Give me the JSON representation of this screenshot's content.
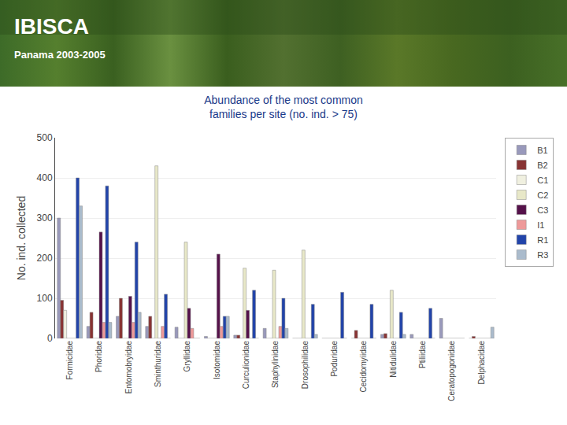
{
  "chart_data": {
    "type": "bar",
    "title": "Abundance of the most common\nfamilies per site (no. ind. > 75)",
    "annotations": [
      "IBISCA",
      "Panama 2003-2005"
    ],
    "y_label": "No. ind. collected",
    "categories": [
      "Formicidae",
      "Phoridae",
      "Entomobryidae",
      "Sminthuridae",
      "Gryllidae",
      "Isotomidae",
      "Curculionidae",
      "Staphylinidae",
      "Drosophilidae",
      "Poduridae",
      "Cecidomyiidae",
      "Nitidulidae",
      "Ptiliidae",
      "Ceratopogonidae",
      "Delphacidae"
    ],
    "series": [
      {
        "name": "B1",
        "color": "#9999bb",
        "values": [
          300,
          30,
          55,
          30,
          28,
          5,
          8,
          25,
          0,
          0,
          0,
          10,
          10,
          50,
          0
        ]
      },
      {
        "name": "B2",
        "color": "#883333",
        "values": [
          95,
          65,
          100,
          55,
          0,
          0,
          8,
          0,
          0,
          0,
          20,
          12,
          0,
          0,
          5
        ]
      },
      {
        "name": "C1",
        "color": "#f0f0e0",
        "values": [
          70,
          0,
          0,
          0,
          0,
          0,
          0,
          0,
          0,
          0,
          0,
          0,
          0,
          0,
          0
        ]
      },
      {
        "name": "C2",
        "color": "#e8e8c8",
        "values": [
          0,
          0,
          0,
          430,
          240,
          0,
          175,
          170,
          220,
          0,
          0,
          120,
          0,
          0,
          0
        ]
      },
      {
        "name": "C3",
        "color": "#55114a",
        "values": [
          0,
          265,
          105,
          0,
          75,
          210,
          70,
          0,
          0,
          0,
          0,
          0,
          0,
          0,
          0
        ]
      },
      {
        "name": "I1",
        "color": "#ee9999",
        "values": [
          0,
          40,
          40,
          30,
          25,
          30,
          0,
          30,
          0,
          0,
          0,
          0,
          0,
          0,
          0
        ]
      },
      {
        "name": "R1",
        "color": "#2244aa",
        "values": [
          400,
          380,
          240,
          110,
          0,
          55,
          120,
          100,
          85,
          115,
          85,
          65,
          75,
          0,
          0
        ]
      },
      {
        "name": "R3",
        "color": "#aabbcc",
        "values": [
          330,
          40,
          65,
          0,
          0,
          55,
          0,
          25,
          10,
          0,
          0,
          10,
          0,
          0,
          28
        ]
      }
    ],
    "ylim": [
      0,
      500
    ],
    "yticks": [
      0,
      100,
      200,
      300,
      400,
      500
    ],
    "grid": true,
    "legend": "upper right"
  }
}
